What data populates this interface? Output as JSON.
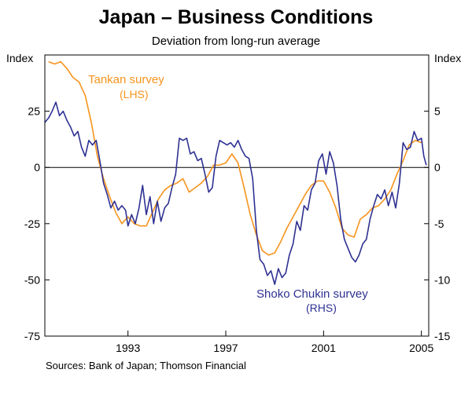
{
  "title": "Japan – Business Conditions",
  "subtitle": "Deviation from long-run average",
  "source": "Sources: Bank of Japan; Thomson Financial",
  "colors": {
    "tankan": "#f7941d",
    "shoko": "#2e3192",
    "zero_line": "#000000",
    "frame": "#000000"
  },
  "chart_data": {
    "type": "line",
    "title": "Japan – Business Conditions",
    "subtitle": "Deviation from long-run average",
    "xlim": [
      1989.6,
      2005.3
    ],
    "x_ticks": [
      1993,
      1997,
      2001,
      2005
    ],
    "x_tick_labels": [
      "1993",
      "1997",
      "2001",
      "2005"
    ],
    "left_axis": {
      "label": "Index",
      "ylim": [
        -75,
        50
      ],
      "ticks": [
        25,
        0,
        -25,
        -50,
        -75
      ],
      "tick_labels": [
        "25",
        "0",
        "-25",
        "-50",
        "-75"
      ]
    },
    "right_axis": {
      "label": "Index",
      "ylim": [
        -15,
        10
      ],
      "ticks": [
        5,
        0,
        -5,
        -10,
        -15
      ],
      "tick_labels": [
        "5",
        "0",
        "-5",
        "-10",
        "-15"
      ]
    },
    "series": [
      {
        "name": "Tankan survey",
        "axis_note": "(LHS)",
        "axis": "left",
        "points": [
          [
            1989.75,
            47
          ],
          [
            1990.0,
            46
          ],
          [
            1990.25,
            47
          ],
          [
            1990.5,
            44
          ],
          [
            1990.75,
            40
          ],
          [
            1991.0,
            38
          ],
          [
            1991.25,
            32
          ],
          [
            1991.5,
            20
          ],
          [
            1991.75,
            5
          ],
          [
            1992.0,
            -5
          ],
          [
            1992.25,
            -13
          ],
          [
            1992.5,
            -20
          ],
          [
            1992.75,
            -25
          ],
          [
            1993.0,
            -22
          ],
          [
            1993.25,
            -25
          ],
          [
            1993.5,
            -26
          ],
          [
            1993.75,
            -26
          ],
          [
            1994.0,
            -20
          ],
          [
            1994.25,
            -14
          ],
          [
            1994.5,
            -10
          ],
          [
            1994.75,
            -8
          ],
          [
            1995.0,
            -7
          ],
          [
            1995.25,
            -5
          ],
          [
            1995.5,
            -11
          ],
          [
            1995.75,
            -9
          ],
          [
            1996.0,
            -7
          ],
          [
            1996.25,
            -4
          ],
          [
            1996.5,
            1
          ],
          [
            1996.75,
            1
          ],
          [
            1997.0,
            2
          ],
          [
            1997.25,
            6
          ],
          [
            1997.5,
            2
          ],
          [
            1997.75,
            -9
          ],
          [
            1998.0,
            -21
          ],
          [
            1998.25,
            -30
          ],
          [
            1998.5,
            -37
          ],
          [
            1998.75,
            -39
          ],
          [
            1999.0,
            -38
          ],
          [
            1999.25,
            -33
          ],
          [
            1999.5,
            -27
          ],
          [
            1999.75,
            -22
          ],
          [
            2000.0,
            -17
          ],
          [
            2000.25,
            -12
          ],
          [
            2000.5,
            -8
          ],
          [
            2000.75,
            -6
          ],
          [
            2001.0,
            -6
          ],
          [
            2001.25,
            -11
          ],
          [
            2001.5,
            -18
          ],
          [
            2001.75,
            -27
          ],
          [
            2002.0,
            -30
          ],
          [
            2002.25,
            -31
          ],
          [
            2002.5,
            -23
          ],
          [
            2002.75,
            -21
          ],
          [
            2003.0,
            -18
          ],
          [
            2003.25,
            -17
          ],
          [
            2003.5,
            -14
          ],
          [
            2003.75,
            -10
          ],
          [
            2004.0,
            -3
          ],
          [
            2004.25,
            3
          ],
          [
            2004.5,
            10
          ],
          [
            2004.75,
            12
          ],
          [
            2005.0,
            11
          ]
        ]
      },
      {
        "name": "Shoko Chukin survey",
        "axis_note": "(RHS)",
        "axis": "right",
        "points": [
          [
            1989.6,
            4.0
          ],
          [
            1989.75,
            4.4
          ],
          [
            1989.9,
            5.0
          ],
          [
            1990.05,
            5.8
          ],
          [
            1990.2,
            4.6
          ],
          [
            1990.35,
            5.0
          ],
          [
            1990.5,
            4.2
          ],
          [
            1990.65,
            3.6
          ],
          [
            1990.8,
            2.8
          ],
          [
            1990.95,
            3.2
          ],
          [
            1991.1,
            1.8
          ],
          [
            1991.25,
            1.0
          ],
          [
            1991.4,
            2.4
          ],
          [
            1991.55,
            2.0
          ],
          [
            1991.7,
            2.4
          ],
          [
            1991.85,
            0.6
          ],
          [
            1992.0,
            -1.4
          ],
          [
            1992.15,
            -2.4
          ],
          [
            1992.3,
            -3.6
          ],
          [
            1992.45,
            -3.0
          ],
          [
            1992.6,
            -3.8
          ],
          [
            1992.75,
            -3.4
          ],
          [
            1992.9,
            -3.8
          ],
          [
            1993.0,
            -5.2
          ],
          [
            1993.15,
            -4.2
          ],
          [
            1993.3,
            -5.0
          ],
          [
            1993.45,
            -3.6
          ],
          [
            1993.6,
            -1.6
          ],
          [
            1993.75,
            -4.2
          ],
          [
            1993.9,
            -2.6
          ],
          [
            1994.05,
            -5.0
          ],
          [
            1994.2,
            -3.0
          ],
          [
            1994.35,
            -4.8
          ],
          [
            1994.5,
            -3.6
          ],
          [
            1994.65,
            -3.2
          ],
          [
            1994.8,
            -1.8
          ],
          [
            1994.95,
            -0.6
          ],
          [
            1995.1,
            2.6
          ],
          [
            1995.25,
            2.4
          ],
          [
            1995.4,
            2.6
          ],
          [
            1995.55,
            1.2
          ],
          [
            1995.7,
            1.4
          ],
          [
            1995.85,
            0.6
          ],
          [
            1996.0,
            0.8
          ],
          [
            1996.15,
            -0.6
          ],
          [
            1996.3,
            -2.2
          ],
          [
            1996.45,
            -1.8
          ],
          [
            1996.6,
            1.0
          ],
          [
            1996.75,
            2.4
          ],
          [
            1996.9,
            2.2
          ],
          [
            1997.05,
            2.0
          ],
          [
            1997.2,
            2.2
          ],
          [
            1997.35,
            1.8
          ],
          [
            1997.5,
            2.4
          ],
          [
            1997.65,
            1.6
          ],
          [
            1997.8,
            1.0
          ],
          [
            1997.95,
            0.8
          ],
          [
            1998.1,
            -1.0
          ],
          [
            1998.25,
            -5.6
          ],
          [
            1998.4,
            -8.2
          ],
          [
            1998.55,
            -8.6
          ],
          [
            1998.7,
            -9.6
          ],
          [
            1998.85,
            -9.2
          ],
          [
            1999.0,
            -10.4
          ],
          [
            1999.15,
            -9.0
          ],
          [
            1999.3,
            -9.8
          ],
          [
            1999.45,
            -9.4
          ],
          [
            1999.6,
            -7.8
          ],
          [
            1999.75,
            -6.8
          ],
          [
            1999.9,
            -4.8
          ],
          [
            2000.05,
            -5.6
          ],
          [
            2000.2,
            -3.4
          ],
          [
            2000.35,
            -3.8
          ],
          [
            2000.5,
            -2.0
          ],
          [
            2000.65,
            -1.4
          ],
          [
            2000.8,
            0.6
          ],
          [
            2000.95,
            1.2
          ],
          [
            2001.1,
            -0.6
          ],
          [
            2001.25,
            1.4
          ],
          [
            2001.4,
            0.4
          ],
          [
            2001.55,
            -1.6
          ],
          [
            2001.7,
            -4.6
          ],
          [
            2001.85,
            -6.4
          ],
          [
            2002.0,
            -7.2
          ],
          [
            2002.15,
            -8.0
          ],
          [
            2002.3,
            -8.4
          ],
          [
            2002.45,
            -7.8
          ],
          [
            2002.6,
            -6.8
          ],
          [
            2002.75,
            -6.4
          ],
          [
            2002.9,
            -4.6
          ],
          [
            2003.05,
            -3.4
          ],
          [
            2003.2,
            -2.4
          ],
          [
            2003.35,
            -2.8
          ],
          [
            2003.5,
            -2.0
          ],
          [
            2003.65,
            -3.4
          ],
          [
            2003.8,
            -2.2
          ],
          [
            2003.95,
            -3.6
          ],
          [
            2004.1,
            -1.4
          ],
          [
            2004.25,
            2.2
          ],
          [
            2004.4,
            1.6
          ],
          [
            2004.55,
            1.8
          ],
          [
            2004.7,
            3.2
          ],
          [
            2004.85,
            2.4
          ],
          [
            2005.0,
            2.6
          ],
          [
            2005.1,
            1.0
          ],
          [
            2005.2,
            0.2
          ]
        ]
      }
    ]
  }
}
